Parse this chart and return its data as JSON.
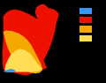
{
  "background_color": "#000000",
  "map_colors": {
    "BWh": "#EE1100",
    "BSh": "#F5A800",
    "BSk": "#FFDD55",
    "coastal_blue": "#3399FF"
  },
  "figsize": [
    1.2,
    0.94
  ],
  "dpi": 100,
  "legend_colors": [
    "#3399FF",
    "#EE1100",
    "#F5A800",
    "#FFDD55"
  ]
}
